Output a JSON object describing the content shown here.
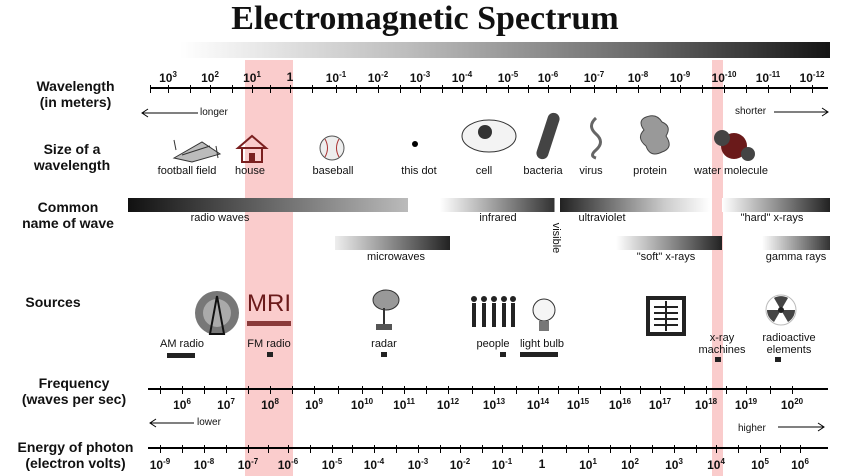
{
  "title": "Electromagnetic Spectrum",
  "rows": {
    "wavelength": "Wavelength\n(in meters)",
    "size": "Size of a\nwavelength",
    "common": "Common\nname of wave",
    "sources": "Sources",
    "frequency": "Frequency\n(waves per sec)",
    "energy": "Energy of photon\n(electron volts)"
  },
  "wavelength_labels": [
    {
      "base": "10",
      "exp": "3"
    },
    {
      "base": "10",
      "exp": "2"
    },
    {
      "base": "10",
      "exp": "1"
    },
    {
      "base": "1",
      "exp": ""
    },
    {
      "base": "10",
      "exp": "-1"
    },
    {
      "base": "10",
      "exp": "-2"
    },
    {
      "base": "10",
      "exp": "-3"
    },
    {
      "base": "10",
      "exp": "-4"
    },
    {
      "base": "10",
      "exp": "-5"
    },
    {
      "base": "10",
      "exp": "-6"
    },
    {
      "base": "10",
      "exp": "-7"
    },
    {
      "base": "10",
      "exp": "-8"
    },
    {
      "base": "10",
      "exp": "-9"
    },
    {
      "base": "10",
      "exp": "-10"
    },
    {
      "base": "10",
      "exp": "-11"
    },
    {
      "base": "10",
      "exp": "-12"
    }
  ],
  "wavelength_arrows": {
    "left": "longer",
    "right": "shorter"
  },
  "size_items": [
    "football field",
    "house",
    "baseball",
    "this dot",
    "cell",
    "bacteria",
    "virus",
    "protein",
    "water molecule"
  ],
  "wave_names": {
    "radio": "radio waves",
    "infrared": "infrared",
    "visible": "visible",
    "ultraviolet": "ultraviolet",
    "hard_xray": "\"hard\" x-rays",
    "microwaves": "microwaves",
    "soft_xray": "\"soft\" x-rays",
    "gamma": "gamma rays"
  },
  "sources": {
    "am": "AM radio",
    "mri": "MRI",
    "fm": "FM radio",
    "radar": "radar",
    "people": "people",
    "bulb": "light bulb",
    "xray": "x-ray\nmachines",
    "radioactive": "radioactive\nelements"
  },
  "frequency_labels": [
    {
      "base": "10",
      "exp": "6"
    },
    {
      "base": "10",
      "exp": "7"
    },
    {
      "base": "10",
      "exp": "8"
    },
    {
      "base": "10",
      "exp": "9"
    },
    {
      "base": "10",
      "exp": "10"
    },
    {
      "base": "10",
      "exp": "11"
    },
    {
      "base": "10",
      "exp": "12"
    },
    {
      "base": "10",
      "exp": "13"
    },
    {
      "base": "10",
      "exp": "14"
    },
    {
      "base": "10",
      "exp": "15"
    },
    {
      "base": "10",
      "exp": "16"
    },
    {
      "base": "10",
      "exp": "17"
    },
    {
      "base": "10",
      "exp": "18"
    },
    {
      "base": "10",
      "exp": "19"
    },
    {
      "base": "10",
      "exp": "20"
    }
  ],
  "frequency_arrows": {
    "left": "lower",
    "right": "higher"
  },
  "energy_labels": [
    {
      "base": "10",
      "exp": "-9"
    },
    {
      "base": "10",
      "exp": "-8"
    },
    {
      "base": "10",
      "exp": "-7"
    },
    {
      "base": "10",
      "exp": "-6"
    },
    {
      "base": "10",
      "exp": "-5"
    },
    {
      "base": "10",
      "exp": "-4"
    },
    {
      "base": "10",
      "exp": "-3"
    },
    {
      "base": "10",
      "exp": "-2"
    },
    {
      "base": "10",
      "exp": "-1"
    },
    {
      "base": "1",
      "exp": ""
    },
    {
      "base": "10",
      "exp": "1"
    },
    {
      "base": "10",
      "exp": "2"
    },
    {
      "base": "10",
      "exp": "3"
    },
    {
      "base": "10",
      "exp": "4"
    },
    {
      "base": "10",
      "exp": "5"
    },
    {
      "base": "10",
      "exp": "6"
    }
  ],
  "colors": {
    "highlight": "#f06e6e",
    "mri_bar": "#8a3a3a"
  }
}
